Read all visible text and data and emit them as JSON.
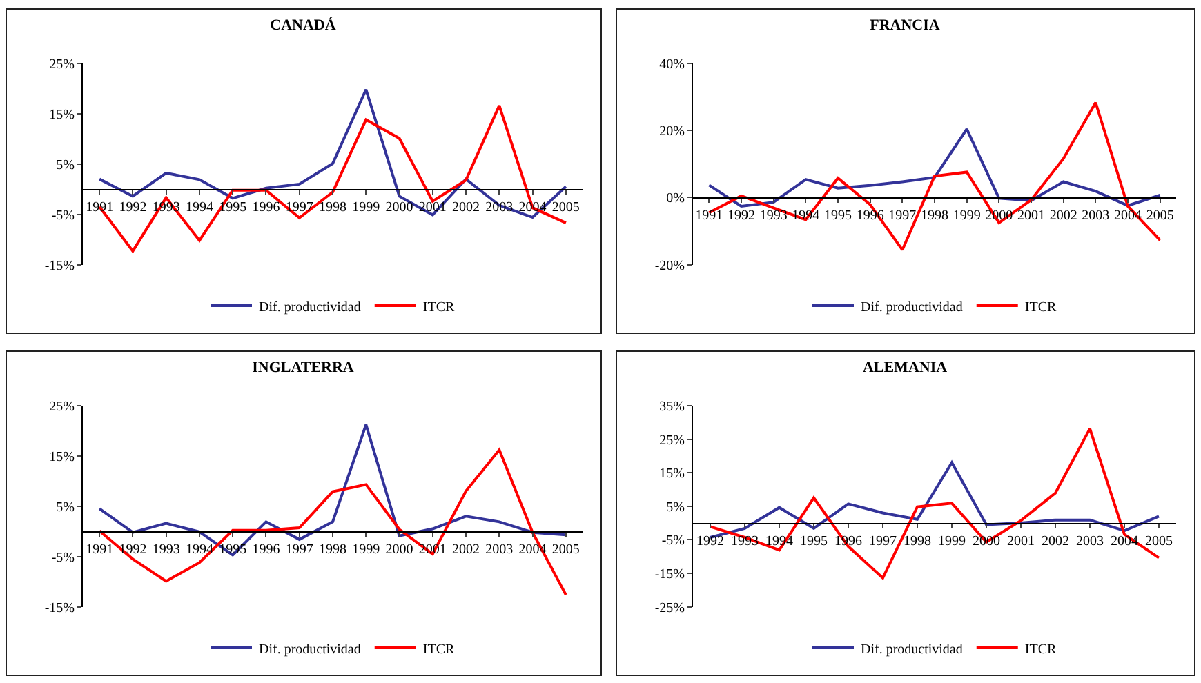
{
  "chart_data": [
    {
      "type": "line",
      "title": "CANADÁ",
      "categories": [
        "1991",
        "1992",
        "1993",
        "1994",
        "1995",
        "1996",
        "1997",
        "1998",
        "1999",
        "2000",
        "2001",
        "2002",
        "2003",
        "2004",
        "2005"
      ],
      "series": [
        {
          "name": "Dif. productividad",
          "color": "#333399",
          "values": [
            2.0,
            -1.4,
            3.2,
            1.9,
            -1.8,
            0.2,
            1.0,
            5.1,
            19.8,
            -1.4,
            -5.1,
            2.0,
            -3.2,
            -5.6,
            0.5
          ]
        },
        {
          "name": "ITCR",
          "color": "#ff0000",
          "values": [
            -3.5,
            -12.3,
            -1.7,
            -10.2,
            -0.2,
            -0.2,
            -5.7,
            -0.6,
            13.8,
            10.1,
            -2.4,
            1.8,
            16.6,
            -3.7,
            -6.7
          ]
        }
      ],
      "ylim": [
        -15,
        25
      ],
      "yticks": [
        {
          "value": -15,
          "label": "-15%"
        },
        {
          "value": -5,
          "label": "-5%"
        },
        {
          "value": 5,
          "label": "5%"
        },
        {
          "value": 15,
          "label": "15%"
        },
        {
          "value": 25,
          "label": "25%"
        }
      ],
      "grid": false,
      "legend": "bottom"
    },
    {
      "type": "line",
      "title": "FRANCIA",
      "categories": [
        "1991",
        "1992",
        "1993",
        "1994",
        "1995",
        "1996",
        "1997",
        "1998",
        "1999",
        "2000",
        "2001",
        "2002",
        "2003",
        "2004",
        "2005"
      ],
      "series": [
        {
          "name": "Dif. productividad",
          "color": "#333399",
          "values": [
            3.7,
            -2.6,
            -1.4,
            5.4,
            2.8,
            3.6,
            4.7,
            6.0,
            20.4,
            -0.2,
            -0.9,
            4.7,
            1.9,
            -2.4,
            0.7
          ]
        },
        {
          "name": "ITCR",
          "color": "#ff0000",
          "values": [
            -4.5,
            0.5,
            -3.1,
            -6.6,
            5.8,
            -2.1,
            -15.6,
            6.4,
            7.6,
            -7.5,
            -0.7,
            11.6,
            28.3,
            -2.6,
            -12.7
          ]
        }
      ],
      "ylim": [
        -20,
        40
      ],
      "yticks": [
        {
          "value": -20,
          "label": "-20%"
        },
        {
          "value": 0,
          "label": "0%"
        },
        {
          "value": 20,
          "label": "20%"
        },
        {
          "value": 40,
          "label": "40%"
        }
      ],
      "grid": false,
      "legend": "bottom"
    },
    {
      "type": "line",
      "title": "INGLATERRA",
      "categories": [
        "1991",
        "1992",
        "1993",
        "1994",
        "1995",
        "1996",
        "1997",
        "1998",
        "1999",
        "2000",
        "2001",
        "2002",
        "2003",
        "2004",
        "2005"
      ],
      "series": [
        {
          "name": "Dif. productividad",
          "color": "#333399",
          "values": [
            4.5,
            -0.2,
            1.6,
            -0.1,
            -4.7,
            1.9,
            -1.6,
            1.9,
            21.2,
            -0.9,
            0.5,
            3.0,
            1.9,
            -0.2,
            -0.7
          ]
        },
        {
          "name": "ITCR",
          "color": "#ff0000",
          "values": [
            0.1,
            -5.5,
            -9.9,
            -6.2,
            0.2,
            0.2,
            0.7,
            7.9,
            9.3,
            0.4,
            -4.5,
            8.0,
            16.2,
            -0.2,
            -12.6
          ]
        }
      ],
      "ylim": [
        -15,
        25
      ],
      "yticks": [
        {
          "value": -15,
          "label": "-15%"
        },
        {
          "value": -5,
          "label": "-5%"
        },
        {
          "value": 5,
          "label": "5%"
        },
        {
          "value": 15,
          "label": "15%"
        },
        {
          "value": 25,
          "label": "25%"
        }
      ],
      "grid": false,
      "legend": "bottom"
    },
    {
      "type": "line",
      "title": "ALEMANIA",
      "categories": [
        "1992",
        "1993",
        "1994",
        "1995",
        "1996",
        "1997",
        "1998",
        "1999",
        "2000",
        "2001",
        "2002",
        "2003",
        "2004",
        "2005"
      ],
      "series": [
        {
          "name": "Dif. productividad",
          "color": "#333399",
          "values": [
            -4.3,
            -1.6,
            4.6,
            -1.6,
            5.7,
            3.0,
            1.1,
            18.0,
            -0.5,
            0.0,
            0.9,
            0.9,
            -2.3,
            2.0
          ]
        },
        {
          "name": "ITCR",
          "color": "#ff0000",
          "values": [
            -1.1,
            -4.3,
            -8.1,
            7.5,
            -7.0,
            -16.4,
            4.8,
            5.9,
            -5.7,
            0.7,
            8.9,
            28.1,
            -3.4,
            -10.4
          ]
        }
      ],
      "ylim": [
        -25,
        35
      ],
      "yticks": [
        {
          "value": -25,
          "label": "-25%"
        },
        {
          "value": -15,
          "label": "-15%"
        },
        {
          "value": -5,
          "label": "-5%"
        },
        {
          "value": 5,
          "label": "5%"
        },
        {
          "value": 15,
          "label": "15%"
        },
        {
          "value": 25,
          "label": "25%"
        },
        {
          "value": 35,
          "label": "35%"
        }
      ],
      "grid": false,
      "legend": "bottom"
    }
  ]
}
